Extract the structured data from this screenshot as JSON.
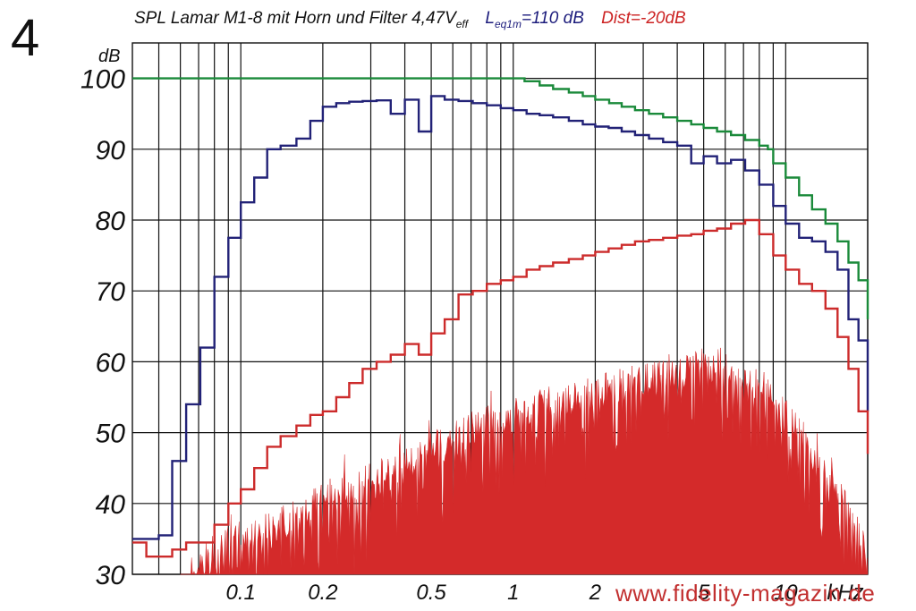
{
  "figure_number": "4",
  "chart_data": {
    "type": "line",
    "title": "SPL Lamar M1-8 mit Horn und Filter 4,47V",
    "title_subscript": "eff",
    "leq_label": "L",
    "leq_sub": "eq1m",
    "leq_value": "=110 dB",
    "dist_label": "Dist=-20dB",
    "ylabel": "dB",
    "xunit": "kHz",
    "x_scale": "log",
    "xlim": [
      0.04,
      20
    ],
    "ylim": [
      30,
      105
    ],
    "y_ticks": [
      30,
      40,
      50,
      60,
      70,
      80,
      90,
      100
    ],
    "x_tick_labels": [
      {
        "value": 0.1,
        "label": "0.1"
      },
      {
        "value": 0.2,
        "label": "0.2"
      },
      {
        "value": 0.5,
        "label": "0.5"
      },
      {
        "value": 1,
        "label": "1"
      },
      {
        "value": 2,
        "label": "2"
      },
      {
        "value": 5,
        "label": "5"
      },
      {
        "value": 10,
        "label": "10"
      }
    ],
    "x_gridlines": [
      0.05,
      0.06,
      0.07,
      0.08,
      0.09,
      0.1,
      0.2,
      0.3,
      0.4,
      0.5,
      0.6,
      0.7,
      0.8,
      0.9,
      1,
      2,
      3,
      4,
      5,
      6,
      7,
      8,
      9,
      10,
      20
    ],
    "grid": true,
    "series": [
      {
        "color": "#1a8a3a",
        "style": "step",
        "points": [
          [
            0.04,
            100
          ],
          [
            0.1,
            100
          ],
          [
            0.3,
            100
          ],
          [
            1,
            100
          ],
          [
            1.1,
            99.6
          ],
          [
            1.25,
            99
          ],
          [
            1.4,
            98.5
          ],
          [
            1.6,
            98
          ],
          [
            1.8,
            97.5
          ],
          [
            2,
            97
          ],
          [
            2.25,
            96.5
          ],
          [
            2.5,
            96
          ],
          [
            2.8,
            95.5
          ],
          [
            3.15,
            95
          ],
          [
            3.55,
            94.5
          ],
          [
            4,
            94
          ],
          [
            4.5,
            93.5
          ],
          [
            5,
            93
          ],
          [
            5.6,
            92.5
          ],
          [
            6.3,
            92
          ],
          [
            7.1,
            91.3
          ],
          [
            8,
            90.5
          ],
          [
            8.6,
            90
          ],
          [
            9,
            88
          ],
          [
            10,
            86
          ],
          [
            11.2,
            83.5
          ],
          [
            12.5,
            81.5
          ],
          [
            14,
            79.5
          ],
          [
            15.5,
            77
          ],
          [
            17,
            74
          ],
          [
            18.5,
            71.5
          ],
          [
            20,
            69
          ],
          [
            21,
            66
          ]
        ]
      },
      {
        "color": "#222277",
        "style": "step",
        "points": [
          [
            0.04,
            35
          ],
          [
            0.05,
            35.5
          ],
          [
            0.056,
            46
          ],
          [
            0.063,
            54
          ],
          [
            0.071,
            62
          ],
          [
            0.08,
            72
          ],
          [
            0.09,
            77.5
          ],
          [
            0.1,
            82.5
          ],
          [
            0.112,
            86
          ],
          [
            0.125,
            90
          ],
          [
            0.14,
            90.5
          ],
          [
            0.16,
            91.5
          ],
          [
            0.18,
            94
          ],
          [
            0.2,
            96
          ],
          [
            0.224,
            96.5
          ],
          [
            0.25,
            96.7
          ],
          [
            0.28,
            96.8
          ],
          [
            0.315,
            96.9
          ],
          [
            0.355,
            95
          ],
          [
            0.4,
            97
          ],
          [
            0.45,
            92.5
          ],
          [
            0.5,
            97.5
          ],
          [
            0.56,
            97
          ],
          [
            0.63,
            96.8
          ],
          [
            0.71,
            96.5
          ],
          [
            0.8,
            96.2
          ],
          [
            0.9,
            95.8
          ],
          [
            1,
            95.5
          ],
          [
            1.12,
            95
          ],
          [
            1.25,
            94.8
          ],
          [
            1.4,
            94.5
          ],
          [
            1.6,
            94
          ],
          [
            1.8,
            93.5
          ],
          [
            2,
            93.2
          ],
          [
            2.24,
            93
          ],
          [
            2.5,
            92.5
          ],
          [
            2.8,
            92
          ],
          [
            3.15,
            91.5
          ],
          [
            3.55,
            91
          ],
          [
            4,
            90.5
          ],
          [
            4.5,
            88
          ],
          [
            5,
            89
          ],
          [
            5.6,
            88
          ],
          [
            6.3,
            88.5
          ],
          [
            7.1,
            87
          ],
          [
            8,
            85
          ],
          [
            9,
            82
          ],
          [
            10,
            79.5
          ],
          [
            11.2,
            77.5
          ],
          [
            12.5,
            77
          ],
          [
            14,
            75.5
          ],
          [
            15.5,
            73
          ],
          [
            17,
            66
          ],
          [
            18.5,
            63
          ],
          [
            20,
            55
          ],
          [
            21,
            53
          ]
        ]
      },
      {
        "color": "#cc2b2b",
        "style": "step",
        "points": [
          [
            0.04,
            34.5
          ],
          [
            0.045,
            32.5
          ],
          [
            0.05,
            32.5
          ],
          [
            0.056,
            33.5
          ],
          [
            0.063,
            34.5
          ],
          [
            0.071,
            34.5
          ],
          [
            0.08,
            37
          ],
          [
            0.09,
            40
          ],
          [
            0.1,
            42
          ],
          [
            0.112,
            45
          ],
          [
            0.125,
            48
          ],
          [
            0.14,
            49.5
          ],
          [
            0.16,
            51
          ],
          [
            0.18,
            52.5
          ],
          [
            0.2,
            53
          ],
          [
            0.224,
            55
          ],
          [
            0.25,
            57
          ],
          [
            0.28,
            59
          ],
          [
            0.315,
            60
          ],
          [
            0.355,
            61
          ],
          [
            0.4,
            62.5
          ],
          [
            0.45,
            61
          ],
          [
            0.5,
            64
          ],
          [
            0.56,
            66
          ],
          [
            0.63,
            69.5
          ],
          [
            0.71,
            70
          ],
          [
            0.8,
            71
          ],
          [
            0.9,
            71.5
          ],
          [
            1,
            72
          ],
          [
            1.12,
            73
          ],
          [
            1.25,
            73.5
          ],
          [
            1.4,
            74
          ],
          [
            1.6,
            74.5
          ],
          [
            1.8,
            75
          ],
          [
            2,
            75.5
          ],
          [
            2.24,
            76
          ],
          [
            2.5,
            76.5
          ],
          [
            2.8,
            77
          ],
          [
            3.15,
            77.2
          ],
          [
            3.55,
            77.5
          ],
          [
            4,
            77.8
          ],
          [
            4.5,
            78
          ],
          [
            5,
            78.5
          ],
          [
            5.6,
            78.8
          ],
          [
            6.3,
            79.5
          ],
          [
            7.1,
            80
          ],
          [
            8,
            78
          ],
          [
            9,
            75
          ],
          [
            10,
            73
          ],
          [
            11.2,
            71
          ],
          [
            12.5,
            70
          ],
          [
            14,
            67.5
          ],
          [
            15.5,
            63.5
          ],
          [
            17,
            59
          ],
          [
            18.5,
            53
          ],
          [
            20,
            47
          ],
          [
            21,
            47
          ]
        ]
      }
    ],
    "distortion_spectrum": {
      "color": "#d42a2a",
      "style": "filled-noise",
      "envelope": [
        [
          0.06,
          30
        ],
        [
          0.07,
          33
        ],
        [
          0.08,
          36
        ],
        [
          0.1,
          38
        ],
        [
          0.15,
          40
        ],
        [
          0.2,
          43
        ],
        [
          0.3,
          45
        ],
        [
          0.5,
          50
        ],
        [
          0.7,
          53
        ],
        [
          1,
          55
        ],
        [
          1.5,
          57
        ],
        [
          2,
          58
        ],
        [
          3,
          60
        ],
        [
          4,
          61
        ],
        [
          5,
          62
        ],
        [
          6,
          62
        ],
        [
          7,
          61
        ],
        [
          8,
          59
        ],
        [
          10,
          55
        ],
        [
          13,
          49
        ],
        [
          16,
          43
        ],
        [
          19,
          37
        ],
        [
          21,
          32
        ]
      ]
    }
  },
  "watermark": "www.fidelity-magazin.de"
}
